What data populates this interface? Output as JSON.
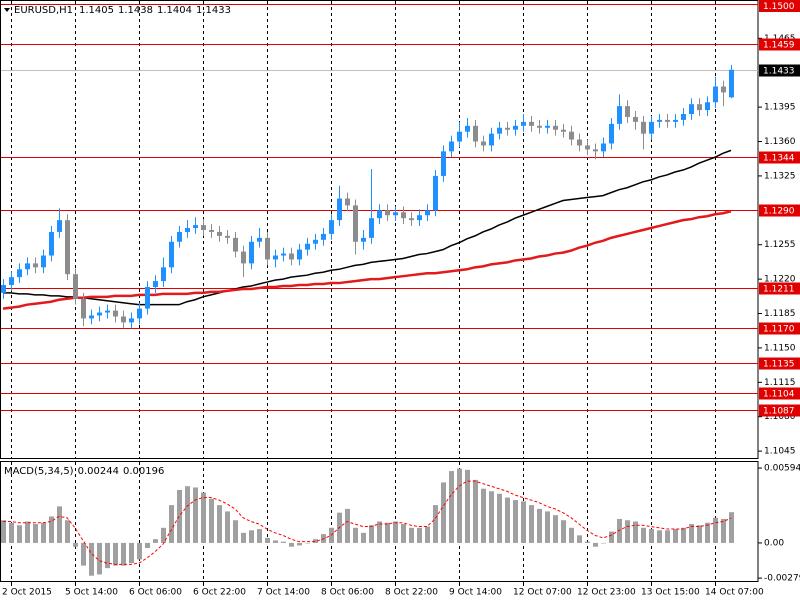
{
  "chart_data": [
    {
      "type": "candlestick",
      "title": "EURUSD,H1",
      "categories": [
        null,
        "2 Oct 2015",
        null,
        null,
        null,
        null,
        null,
        null,
        null,
        "5 Oct 14:00",
        null,
        null,
        null,
        null,
        null,
        null,
        null,
        "6 Oct 06:00",
        null,
        null,
        null,
        null,
        null,
        null,
        null,
        "6 Oct 22:00",
        null,
        null,
        null,
        null,
        null,
        null,
        null,
        "7 Oct 14:00",
        null,
        null,
        null,
        null,
        null,
        null,
        null,
        "8 Oct 06:00",
        null,
        null,
        null,
        null,
        null,
        null,
        null,
        "8 Oct 22:00",
        null,
        null,
        null,
        null,
        null,
        null,
        null,
        "9 Oct 14:00",
        null,
        null,
        null,
        null,
        null,
        null,
        null,
        "12 Oct 07:00",
        null,
        null,
        null,
        null,
        null,
        null,
        null,
        "12 Oct 23:00",
        null,
        null,
        null,
        null,
        null,
        null,
        null,
        "13 Oct 15:00",
        null,
        null,
        null,
        null,
        null,
        null,
        null,
        "14 Oct 07:00",
        null,
        null
      ],
      "open": [
        1.1206,
        1.1214,
        1.1222,
        1.123,
        1.1236,
        1.1232,
        1.1244,
        1.1268,
        1.128,
        1.1225,
        1.12,
        1.118,
        1.1183,
        1.1186,
        1.1188,
        1.1182,
        1.1176,
        1.118,
        1.119,
        1.1212,
        1.1218,
        1.1232,
        1.1258,
        1.1268,
        1.1272,
        1.1275,
        1.127,
        1.1268,
        1.1264,
        1.1262,
        1.1248,
        1.1236,
        1.1258,
        1.1262,
        1.124,
        1.1244,
        1.1246,
        1.124,
        1.125,
        1.1256,
        1.126,
        1.1266,
        1.128,
        1.1302,
        1.1295,
        1.1258,
        1.1262,
        1.1282,
        1.129,
        1.1285,
        1.1288,
        1.1282,
        1.128,
        1.1285,
        1.129,
        1.1325,
        1.135,
        1.136,
        1.137,
        1.1376,
        1.136,
        1.1356,
        1.1368,
        1.1374,
        1.1372,
        1.1376,
        1.138,
        1.1376,
        1.1374,
        1.1376,
        1.1372,
        1.137,
        1.1362,
        1.1356,
        1.1352,
        1.135,
        1.1358,
        1.1378,
        1.1396,
        1.1385,
        1.138,
        1.1368,
        1.138,
        1.1382,
        1.138,
        1.1382,
        1.1388,
        1.1398,
        1.1392,
        1.14,
        1.1416,
        1.1405
      ],
      "high": [
        1.122,
        1.1228,
        1.1236,
        1.1242,
        1.1242,
        1.125,
        1.1274,
        1.1292,
        1.1286,
        1.1231,
        1.1206,
        1.1189,
        1.1192,
        1.1194,
        1.1194,
        1.1188,
        1.1186,
        1.1196,
        1.1218,
        1.1224,
        1.1242,
        1.1264,
        1.1274,
        1.128,
        1.1283,
        1.1281,
        1.1276,
        1.1274,
        1.127,
        1.1268,
        1.1254,
        1.1264,
        1.1272,
        1.1268,
        1.125,
        1.1252,
        1.1252,
        1.1256,
        1.1262,
        1.1266,
        1.1272,
        1.1286,
        1.1315,
        1.1308,
        1.1301,
        1.127,
        1.1332,
        1.1296,
        1.1296,
        1.1294,
        1.1294,
        1.1288,
        1.1291,
        1.1296,
        1.1331,
        1.1356,
        1.1366,
        1.138,
        1.1384,
        1.1382,
        1.1366,
        1.1374,
        1.138,
        1.138,
        1.1382,
        1.1388,
        1.1386,
        1.1382,
        1.1382,
        1.1382,
        1.1378,
        1.1376,
        1.1368,
        1.1362,
        1.1358,
        1.1364,
        1.1384,
        1.1408,
        1.1402,
        1.1391,
        1.1386,
        1.1386,
        1.1388,
        1.1388,
        1.1388,
        1.1394,
        1.1404,
        1.1404,
        1.1406,
        1.1426,
        1.1422,
        1.1438
      ],
      "low": [
        1.12,
        1.1208,
        1.1216,
        1.1224,
        1.1226,
        1.1226,
        1.1238,
        1.1262,
        1.1219,
        1.1194,
        1.1172,
        1.1174,
        1.1177,
        1.118,
        1.1176,
        1.117,
        1.117,
        1.1174,
        1.1184,
        1.1206,
        1.1212,
        1.1226,
        1.1252,
        1.1262,
        1.1266,
        1.1264,
        1.1262,
        1.1258,
        1.1256,
        1.1242,
        1.1222,
        1.123,
        1.1252,
        1.1234,
        1.1232,
        1.1238,
        1.1234,
        1.1234,
        1.1244,
        1.125,
        1.1254,
        1.126,
        1.1274,
        1.1289,
        1.1245,
        1.125,
        1.1256,
        1.1276,
        1.1279,
        1.1279,
        1.1276,
        1.1274,
        1.1274,
        1.1279,
        1.1284,
        1.1319,
        1.1344,
        1.1354,
        1.1364,
        1.1354,
        1.135,
        1.135,
        1.1362,
        1.1366,
        1.1366,
        1.137,
        1.137,
        1.1368,
        1.1368,
        1.1366,
        1.1364,
        1.1356,
        1.135,
        1.1346,
        1.1342,
        1.1344,
        1.1352,
        1.1372,
        1.1379,
        1.1372,
        1.1352,
        1.1362,
        1.1374,
        1.1374,
        1.1374,
        1.1376,
        1.1382,
        1.1386,
        1.1386,
        1.1394,
        1.1396,
        1.1404
      ],
      "close": [
        1.1214,
        1.1222,
        1.123,
        1.1236,
        1.1232,
        1.1244,
        1.1268,
        1.128,
        1.1225,
        1.12,
        1.118,
        1.1183,
        1.1186,
        1.1188,
        1.1182,
        1.1176,
        1.118,
        1.119,
        1.1212,
        1.1218,
        1.1232,
        1.1258,
        1.1268,
        1.1272,
        1.1275,
        1.127,
        1.1268,
        1.1264,
        1.1262,
        1.1248,
        1.1236,
        1.1258,
        1.1262,
        1.124,
        1.1244,
        1.1246,
        1.124,
        1.125,
        1.1256,
        1.126,
        1.1266,
        1.128,
        1.1302,
        1.1295,
        1.1258,
        1.1262,
        1.1282,
        1.129,
        1.1285,
        1.1288,
        1.1282,
        1.128,
        1.1285,
        1.129,
        1.1325,
        1.135,
        1.136,
        1.137,
        1.1376,
        1.136,
        1.1356,
        1.1368,
        1.1374,
        1.1372,
        1.1376,
        1.138,
        1.1376,
        1.1374,
        1.1376,
        1.1372,
        1.137,
        1.1362,
        1.1356,
        1.1352,
        1.135,
        1.1358,
        1.1378,
        1.1396,
        1.1385,
        1.138,
        1.1368,
        1.138,
        1.1382,
        1.138,
        1.1382,
        1.1388,
        1.1398,
        1.1392,
        1.14,
        1.1416,
        1.141,
        1.1433
      ],
      "up_color": "#1e90ff",
      "down_color": "#8c8c8c",
      "overlays": [
        {
          "color": "#000000",
          "values": [
            1.1206,
            1.1206,
            1.1205,
            1.1205,
            1.1204,
            1.1204,
            1.1203,
            1.1203,
            1.1202,
            1.1202,
            1.1201,
            1.12,
            1.1199,
            1.1198,
            1.1197,
            1.1196,
            1.1195,
            1.1194,
            1.1194,
            1.1194,
            1.1194,
            1.1194,
            1.1194,
            1.1197,
            1.1199,
            1.1202,
            1.1204,
            1.1206,
            1.1208,
            1.121,
            1.1212,
            1.1213,
            1.1215,
            1.1217,
            1.1219,
            1.122,
            1.1222,
            1.1223,
            1.1224,
            1.1226,
            1.1227,
            1.1229,
            1.123,
            1.1232,
            1.1234,
            1.1235,
            1.1237,
            1.1238,
            1.1239,
            1.124,
            1.1241,
            1.1243,
            1.1245,
            1.1246,
            1.1248,
            1.125,
            1.1254,
            1.1257,
            1.1261,
            1.1264,
            1.1268,
            1.1271,
            1.1275,
            1.1278,
            1.1282,
            1.1285,
            1.1288,
            1.1291,
            1.1294,
            1.1297,
            1.13,
            1.1301,
            1.1302,
            1.1303,
            1.1304,
            1.1305,
            1.1308,
            1.1311,
            1.1313,
            1.1316,
            1.1319,
            1.1321,
            1.1324,
            1.1326,
            1.1329,
            1.1331,
            1.1334,
            1.1338,
            1.1341,
            1.1344,
            1.1348,
            1.1351
          ]
        },
        {
          "color": "#e31a1c",
          "values": [
            1.119,
            1.1191,
            1.1192,
            1.1194,
            1.1195,
            1.1196,
            1.1197,
            1.1199,
            1.12,
            1.1201,
            1.1201,
            1.1202,
            1.1202,
            1.1202,
            1.1203,
            1.1203,
            1.1203,
            1.1204,
            1.1204,
            1.1204,
            1.1205,
            1.1205,
            1.1205,
            1.1205,
            1.1206,
            1.1206,
            1.1207,
            1.1207,
            1.1208,
            1.1209,
            1.121,
            1.121,
            1.1211,
            1.1212,
            1.1212,
            1.1213,
            1.1213,
            1.1214,
            1.1214,
            1.1215,
            1.1215,
            1.1216,
            1.1216,
            1.1217,
            1.1218,
            1.1219,
            1.122,
            1.122,
            1.1221,
            1.1222,
            1.1223,
            1.1224,
            1.1225,
            1.1226,
            1.1226,
            1.1227,
            1.1228,
            1.1229,
            1.123,
            1.1232,
            1.1233,
            1.1235,
            1.1236,
            1.1237,
            1.1239,
            1.124,
            1.1241,
            1.1243,
            1.1244,
            1.1246,
            1.1247,
            1.1249,
            1.1252,
            1.1254,
            1.1257,
            1.1259,
            1.1262,
            1.1264,
            1.1266,
            1.1268,
            1.127,
            1.1272,
            1.1274,
            1.1276,
            1.1278,
            1.128,
            1.1281,
            1.1283,
            1.1284,
            1.1286,
            1.1287,
            1.1289
          ]
        }
      ],
      "levels": [
        {
          "value": 1.15,
          "label": "1.1500"
        },
        1.1459,
        1.1344,
        {
          "value": 1.129,
          "label": "1.1290"
        },
        1.1211,
        {
          "value": 1.117,
          "label": "1.1170"
        },
        1.1135,
        1.1104,
        1.1087
      ],
      "level_color": "#e00000",
      "ylim": [
        1.1038,
        1.1504
      ],
      "yticks": [
        1.1465,
        1.1395,
        {
          "value": 1.136,
          "label": "1.1360"
        },
        1.1325,
        1.1255,
        {
          "value": 1.122,
          "label": "1.1220"
        },
        1.1185,
        {
          "value": 1.115,
          "label": "1.1150"
        },
        1.1115,
        {
          "value": 1.108,
          "label": "1.1080"
        },
        1.1045
      ],
      "grid": true
    },
    {
      "type": "bar",
      "title": "MACD(5,34,5)",
      "values": [
        0.0018,
        0.0016,
        0.0014,
        0.0017,
        0.0015,
        0.0016,
        0.0021,
        0.0029,
        0.0018,
        -0.0003,
        -0.0018,
        -0.0026,
        -0.0025,
        -0.002,
        -0.0018,
        -0.0018,
        -0.0016,
        -0.0013,
        -0.0004,
        0.0003,
        0.0012,
        0.003,
        0.0042,
        0.0045,
        0.0044,
        0.004,
        0.0035,
        0.003,
        0.0025,
        0.0018,
        0.0008,
        0.001,
        0.0011,
        0.0004,
        0.0002,
        0.0001,
        -0.0003,
        -0.0002,
        0.0,
        0.0003,
        0.0007,
        0.0012,
        0.0024,
        0.0027,
        0.0012,
        0.0008,
        0.0014,
        0.0017,
        0.0016,
        0.0017,
        0.0015,
        0.0012,
        0.0012,
        0.0013,
        0.003,
        0.0048,
        0.0057,
        0.0059,
        0.0058,
        0.005,
        0.0043,
        0.0041,
        0.0039,
        0.0036,
        0.0034,
        0.0033,
        0.003,
        0.0027,
        0.0025,
        0.0022,
        0.0018,
        0.0012,
        0.0006,
        0.0001,
        -0.0003,
        0.0,
        0.0009,
        0.0019,
        0.0018,
        0.0017,
        0.0012,
        0.0011,
        0.001,
        0.001,
        0.0011,
        0.0012,
        0.0015,
        0.0014,
        0.0016,
        0.002,
        0.0019,
        0.00244
      ],
      "color": "#a0a0a0",
      "signal": {
        "color": "#ff0000",
        "values": [
          0.0017,
          0.0017,
          0.0016,
          0.0016,
          0.0016,
          0.0016,
          0.0017,
          0.0021,
          0.002,
          0.0012,
          0.0002,
          -0.0008,
          -0.0014,
          -0.0016,
          -0.0017,
          -0.0017,
          -0.0017,
          -0.0016,
          -0.0012,
          -0.0007,
          -0.0001,
          0.001,
          0.0021,
          0.0029,
          0.0034,
          0.0036,
          0.0036,
          0.0034,
          0.0031,
          0.0027,
          0.002,
          0.0017,
          0.0015,
          0.0011,
          0.0008,
          0.0006,
          0.0003,
          0.0001,
          0.0001,
          0.0001,
          0.0003,
          0.0006,
          0.0012,
          0.0017,
          0.0015,
          0.0013,
          0.0013,
          0.0015,
          0.0015,
          0.0016,
          0.0016,
          0.0014,
          0.0013,
          0.0013,
          0.0019,
          0.0029,
          0.0038,
          0.0045,
          0.0049,
          0.0049,
          0.0047,
          0.0045,
          0.0043,
          0.0041,
          0.0038,
          0.0036,
          0.0034,
          0.0032,
          0.0029,
          0.0027,
          0.0024,
          0.002,
          0.0015,
          0.001,
          0.0006,
          0.0004,
          0.0006,
          0.001,
          0.0013,
          0.0014,
          0.0014,
          0.0013,
          0.0012,
          0.0011,
          0.0011,
          0.0011,
          0.0013,
          0.0013,
          0.0014,
          0.0016,
          0.0017,
          0.00196
        ]
      },
      "ylim": [
        -0.0031,
        0.0065
      ],
      "yticks": [
        0.00594,
        {
          "value": 0,
          "label": "0.00"
        },
        -0.00279
      ]
    }
  ]
}
